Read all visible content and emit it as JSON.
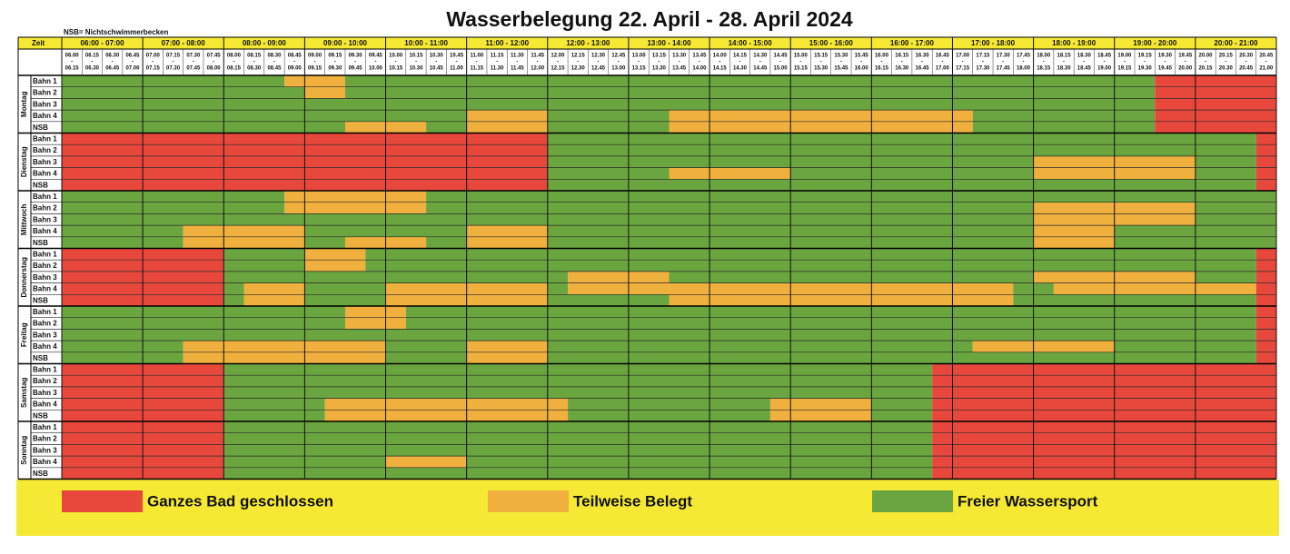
{
  "header": {
    "title": "Wasserbelegung 22. April - 28. April 2024",
    "note": "NSB= Nichtschwimmerbecken",
    "time_label": "Zeit"
  },
  "hours": [
    "06:00 - 07:00",
    "07:00 - 08:00",
    "08:00 - 09:00",
    "09:00 - 10:00",
    "10:00 - 11:00",
    "11:00 - 12:00",
    "12:00 - 13:00",
    "13:00 - 14:00",
    "14:00 - 15:00",
    "15:00 - 16:00",
    "16:00 - 17:00",
    "17:00 - 18:00",
    "18:00 - 19:00",
    "19:00 - 20:00",
    "20:00 - 21:00"
  ],
  "slot_separator": "-",
  "slots": [
    {
      "start": "06.00",
      "end": "06.15"
    },
    {
      "start": "06.15",
      "end": "06.30"
    },
    {
      "start": "06.30",
      "end": "06.45"
    },
    {
      "start": "06.45",
      "end": "07.00"
    },
    {
      "start": "07.00",
      "end": "07.15"
    },
    {
      "start": "07.15",
      "end": "07.30"
    },
    {
      "start": "07.30",
      "end": "07.45"
    },
    {
      "start": "07.45",
      "end": "08.00"
    },
    {
      "start": "08.00",
      "end": "08.15"
    },
    {
      "start": "08.15",
      "end": "08.30"
    },
    {
      "start": "08.30",
      "end": "08.45"
    },
    {
      "start": "08.45",
      "end": "09.00"
    },
    {
      "start": "09.00",
      "end": "09.15"
    },
    {
      "start": "09.15",
      "end": "09.30"
    },
    {
      "start": "09.30",
      "end": "09.45"
    },
    {
      "start": "09.45",
      "end": "10.00"
    },
    {
      "start": "10.00",
      "end": "10.15"
    },
    {
      "start": "10.15",
      "end": "10.30"
    },
    {
      "start": "10.30",
      "end": "10.45"
    },
    {
      "start": "10.45",
      "end": "11.00"
    },
    {
      "start": "11.00",
      "end": "11.15"
    },
    {
      "start": "11.15",
      "end": "11.30"
    },
    {
      "start": "11.30",
      "end": "11.45"
    },
    {
      "start": "11.45",
      "end": "12.00"
    },
    {
      "start": "12.00",
      "end": "12.15"
    },
    {
      "start": "12.15",
      "end": "12.30"
    },
    {
      "start": "12.30",
      "end": "12.45"
    },
    {
      "start": "12.45",
      "end": "13.00"
    },
    {
      "start": "13.00",
      "end": "13.15"
    },
    {
      "start": "13.15",
      "end": "13.30"
    },
    {
      "start": "13.30",
      "end": "13.45"
    },
    {
      "start": "13.45",
      "end": "14.00"
    },
    {
      "start": "14.00",
      "end": "14.15"
    },
    {
      "start": "14.15",
      "end": "14.30"
    },
    {
      "start": "14.30",
      "end": "14.45"
    },
    {
      "start": "14.45",
      "end": "15.00"
    },
    {
      "start": "15.00",
      "end": "15.15"
    },
    {
      "start": "15.15",
      "end": "15.30"
    },
    {
      "start": "15.30",
      "end": "15.45"
    },
    {
      "start": "15.45",
      "end": "16.00"
    },
    {
      "start": "16.00",
      "end": "16.15"
    },
    {
      "start": "16.15",
      "end": "16.30"
    },
    {
      "start": "16.30",
      "end": "16.45"
    },
    {
      "start": "16.45",
      "end": "17.00"
    },
    {
      "start": "17.00",
      "end": "17.15"
    },
    {
      "start": "17.15",
      "end": "17.30"
    },
    {
      "start": "17.30",
      "end": "17.45"
    },
    {
      "start": "17.45",
      "end": "18.00"
    },
    {
      "start": "18.00",
      "end": "18.15"
    },
    {
      "start": "18.15",
      "end": "18.30"
    },
    {
      "start": "18.30",
      "end": "18.45"
    },
    {
      "start": "18.45",
      "end": "19.00"
    },
    {
      "start": "19.00",
      "end": "19.15"
    },
    {
      "start": "19.15",
      "end": "19.30"
    },
    {
      "start": "19.30",
      "end": "19.45"
    },
    {
      "start": "19.45",
      "end": "20.00"
    },
    {
      "start": "20.00",
      "end": "20.15"
    },
    {
      "start": "20.15",
      "end": "20.30"
    },
    {
      "start": "20.30",
      "end": "20.45"
    },
    {
      "start": "20.45",
      "end": "21.00"
    }
  ],
  "days": [
    {
      "name": "Montag",
      "lanes": [
        {
          "name": "Bahn 1",
          "cells": [
            "2222",
            "2222",
            "2221",
            "1122",
            "2222",
            "2222",
            "2222",
            "2222",
            "2222",
            "2222",
            "2222",
            "2222",
            "2222",
            "2200",
            "0000"
          ]
        },
        {
          "name": "Bahn 2",
          "cells": [
            "2222",
            "2222",
            "2222",
            "1122",
            "2222",
            "2222",
            "2222",
            "2222",
            "2222",
            "2222",
            "2222",
            "2222",
            "2222",
            "2200",
            "0000"
          ]
        },
        {
          "name": "Bahn 3",
          "cells": [
            "2222",
            "2222",
            "2222",
            "2222",
            "2222",
            "2222",
            "2222",
            "2222",
            "2222",
            "2222",
            "2222",
            "2222",
            "2222",
            "2200",
            "0000"
          ]
        },
        {
          "name": "Bahn 4",
          "cells": [
            "2222",
            "2222",
            "2222",
            "2222",
            "2222",
            "1111",
            "2222",
            "2211",
            "1111",
            "1111",
            "1111",
            "1222",
            "2222",
            "2200",
            "0000"
          ]
        },
        {
          "name": "NSB",
          "cells": [
            "2222",
            "2222",
            "2222",
            "2211",
            "1122",
            "1111",
            "2222",
            "2211",
            "1111",
            "1111",
            "1111",
            "1222",
            "2222",
            "2200",
            "0000"
          ]
        }
      ]
    },
    {
      "name": "Dienstag",
      "lanes": [
        {
          "name": "Bahn 1",
          "cells": [
            "0000",
            "0000",
            "0000",
            "0000",
            "0000",
            "0000",
            "2222",
            "2222",
            "2222",
            "2222",
            "2222",
            "2222",
            "2222",
            "2222",
            "2220"
          ]
        },
        {
          "name": "Bahn 2",
          "cells": [
            "0000",
            "0000",
            "0000",
            "0000",
            "0000",
            "0000",
            "2222",
            "2222",
            "2222",
            "2222",
            "2222",
            "2222",
            "2222",
            "2222",
            "2220"
          ]
        },
        {
          "name": "Bahn 3",
          "cells": [
            "0000",
            "0000",
            "0000",
            "0000",
            "0000",
            "0000",
            "2222",
            "2222",
            "2222",
            "2222",
            "2222",
            "2222",
            "1111",
            "1111",
            "2220"
          ]
        },
        {
          "name": "Bahn 4",
          "cells": [
            "0000",
            "0000",
            "0000",
            "0000",
            "0000",
            "0000",
            "2222",
            "2211",
            "1111",
            "2222",
            "2222",
            "2222",
            "1111",
            "1111",
            "2220"
          ]
        },
        {
          "name": "NSB",
          "cells": [
            "0000",
            "0000",
            "0000",
            "0000",
            "0000",
            "0000",
            "2222",
            "2222",
            "2222",
            "2222",
            "2222",
            "2222",
            "2222",
            "2222",
            "2220"
          ]
        }
      ]
    },
    {
      "name": "Mittwoch",
      "lanes": [
        {
          "name": "Bahn 1",
          "cells": [
            "2222",
            "2222",
            "2221",
            "1111",
            "1122",
            "2222",
            "2222",
            "2222",
            "2222",
            "2222",
            "2222",
            "2222",
            "2222",
            "2222",
            "2222"
          ]
        },
        {
          "name": "Bahn 2",
          "cells": [
            "2222",
            "2222",
            "2221",
            "1111",
            "1122",
            "2222",
            "2222",
            "2222",
            "2222",
            "2222",
            "2222",
            "2222",
            "1111",
            "1111",
            "2222"
          ]
        },
        {
          "name": "Bahn 3",
          "cells": [
            "2222",
            "2222",
            "2222",
            "2222",
            "2222",
            "2222",
            "2222",
            "2222",
            "2222",
            "2222",
            "2222",
            "2222",
            "1111",
            "1111",
            "2222"
          ]
        },
        {
          "name": "Bahn 4",
          "cells": [
            "2222",
            "2211",
            "1111",
            "2222",
            "2222",
            "1111",
            "2222",
            "2222",
            "2222",
            "2222",
            "2222",
            "2222",
            "1111",
            "2222",
            "2222"
          ]
        },
        {
          "name": "NSB",
          "cells": [
            "2222",
            "2211",
            "1111",
            "2211",
            "1122",
            "1111",
            "2222",
            "2222",
            "2222",
            "2222",
            "2222",
            "2222",
            "1111",
            "2222",
            "2222"
          ]
        }
      ]
    },
    {
      "name": "Donnerstag",
      "lanes": [
        {
          "name": "Bahn 1",
          "cells": [
            "0000",
            "0000",
            "2222",
            "1112",
            "2222",
            "2222",
            "2222",
            "2222",
            "2222",
            "2222",
            "2222",
            "2222",
            "2222",
            "2222",
            "2220"
          ]
        },
        {
          "name": "Bahn 2",
          "cells": [
            "0000",
            "0000",
            "2222",
            "1112",
            "2222",
            "2222",
            "2222",
            "2222",
            "2222",
            "2222",
            "2222",
            "2222",
            "2222",
            "2222",
            "2220"
          ]
        },
        {
          "name": "Bahn 3",
          "cells": [
            "0000",
            "0000",
            "2222",
            "2222",
            "2222",
            "2222",
            "2111",
            "1122",
            "2222",
            "2222",
            "2222",
            "2222",
            "1111",
            "1111",
            "2220"
          ]
        },
        {
          "name": "Bahn 4",
          "cells": [
            "0000",
            "0000",
            "2111",
            "2222",
            "1111",
            "1111",
            "2111",
            "1111",
            "1111",
            "1111",
            "1111",
            "1112",
            "2111",
            "1111",
            "1110"
          ]
        },
        {
          "name": "NSB",
          "cells": [
            "0000",
            "0000",
            "2111",
            "2222",
            "1111",
            "1111",
            "2222",
            "2211",
            "1111",
            "1111",
            "1111",
            "1112",
            "2222",
            "2222",
            "2220"
          ]
        }
      ]
    },
    {
      "name": "Freitag",
      "lanes": [
        {
          "name": "Bahn 1",
          "cells": [
            "2222",
            "2222",
            "2222",
            "2211",
            "1222",
            "2222",
            "2222",
            "2222",
            "2222",
            "2222",
            "2222",
            "2222",
            "2222",
            "2222",
            "2220"
          ]
        },
        {
          "name": "Bahn 2",
          "cells": [
            "2222",
            "2222",
            "2222",
            "2211",
            "1222",
            "2222",
            "2222",
            "2222",
            "2222",
            "2222",
            "2222",
            "2222",
            "2222",
            "2222",
            "2220"
          ]
        },
        {
          "name": "Bahn 3",
          "cells": [
            "2222",
            "2222",
            "2222",
            "2222",
            "2222",
            "2222",
            "2222",
            "2222",
            "2222",
            "2222",
            "2222",
            "2222",
            "2222",
            "2222",
            "2220"
          ]
        },
        {
          "name": "Bahn 4",
          "cells": [
            "2222",
            "2211",
            "1111",
            "1111",
            "2222",
            "1111",
            "2222",
            "2222",
            "2222",
            "2222",
            "2222",
            "2111",
            "1111",
            "2222",
            "2220"
          ]
        },
        {
          "name": "NSB",
          "cells": [
            "2222",
            "2211",
            "1111",
            "1111",
            "2222",
            "1111",
            "2222",
            "2222",
            "2222",
            "2222",
            "2222",
            "2222",
            "2222",
            "2222",
            "2220"
          ]
        }
      ]
    },
    {
      "name": "Samstag",
      "lanes": [
        {
          "name": "Bahn 1",
          "cells": [
            "0000",
            "0000",
            "2222",
            "2222",
            "2222",
            "2222",
            "2222",
            "2222",
            "2222",
            "2222",
            "2220",
            "0000",
            "0000",
            "0000",
            "0000"
          ]
        },
        {
          "name": "Bahn 2",
          "cells": [
            "0000",
            "0000",
            "2222",
            "2222",
            "2222",
            "2222",
            "2222",
            "2222",
            "2222",
            "2222",
            "2220",
            "0000",
            "0000",
            "0000",
            "0000"
          ]
        },
        {
          "name": "Bahn 3",
          "cells": [
            "0000",
            "0000",
            "2222",
            "2222",
            "2222",
            "2222",
            "2222",
            "2222",
            "2222",
            "2222",
            "2220",
            "0000",
            "0000",
            "0000",
            "0000"
          ]
        },
        {
          "name": "Bahn 4",
          "cells": [
            "0000",
            "0000",
            "2222",
            "2111",
            "1111",
            "1111",
            "1222",
            "2222",
            "2221",
            "1111",
            "2220",
            "0000",
            "0000",
            "0000",
            "0000"
          ]
        },
        {
          "name": "NSB",
          "cells": [
            "0000",
            "0000",
            "2222",
            "2111",
            "1111",
            "1111",
            "1222",
            "2222",
            "2221",
            "1111",
            "2220",
            "0000",
            "0000",
            "0000",
            "0000"
          ]
        }
      ]
    },
    {
      "name": "Sonntag",
      "lanes": [
        {
          "name": "Bahn 1",
          "cells": [
            "0000",
            "0000",
            "2222",
            "2222",
            "2222",
            "2222",
            "2222",
            "2222",
            "2222",
            "2222",
            "2220",
            "0000",
            "0000",
            "0000",
            "0000"
          ]
        },
        {
          "name": "Bahn 2",
          "cells": [
            "0000",
            "0000",
            "2222",
            "2222",
            "2222",
            "2222",
            "2222",
            "2222",
            "2222",
            "2222",
            "2220",
            "0000",
            "0000",
            "0000",
            "0000"
          ]
        },
        {
          "name": "Bahn 3",
          "cells": [
            "0000",
            "0000",
            "2222",
            "2222",
            "2222",
            "2222",
            "2222",
            "2222",
            "2222",
            "2222",
            "2220",
            "0000",
            "0000",
            "0000",
            "0000"
          ]
        },
        {
          "name": "Bahn 4",
          "cells": [
            "0000",
            "0000",
            "2222",
            "2222",
            "1111",
            "2222",
            "2222",
            "2222",
            "2222",
            "2222",
            "2220",
            "0000",
            "0000",
            "0000",
            "0000"
          ]
        },
        {
          "name": "NSB",
          "cells": [
            "0000",
            "0000",
            "2222",
            "2222",
            "2222",
            "2222",
            "2222",
            "2222",
            "2222",
            "2222",
            "2220",
            "0000",
            "0000",
            "0000",
            "0000"
          ]
        }
      ]
    }
  ],
  "legend": [
    {
      "label": "Ganzes Bad geschlossen",
      "color": "#e8483b"
    },
    {
      "label": "Teilweise Belegt",
      "color": "#f0b03e"
    },
    {
      "label": "Freier Wassersport",
      "color": "#6aa53f"
    }
  ]
}
